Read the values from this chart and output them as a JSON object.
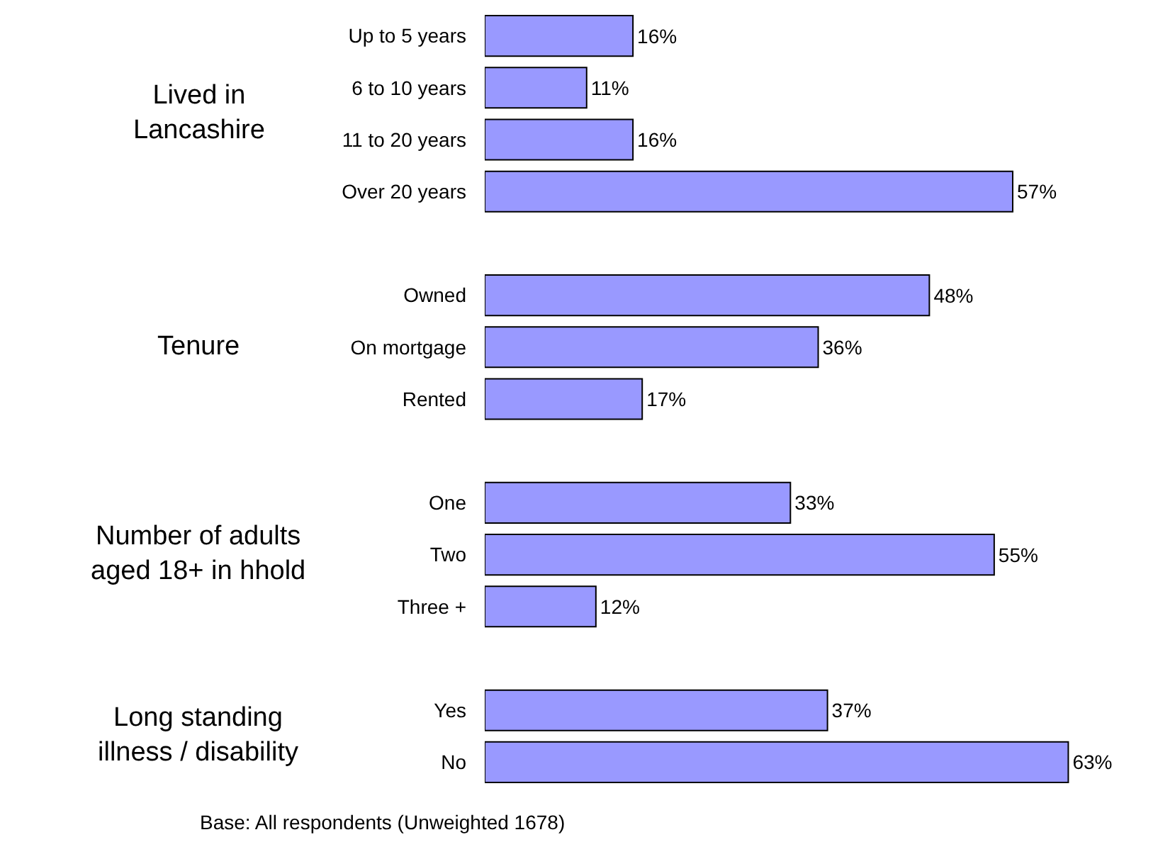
{
  "chart_data": {
    "type": "bar",
    "orientation": "horizontal",
    "color": "#9999ff",
    "value_labels": [
      "16%",
      "11%",
      "16%",
      "57%",
      null,
      "48%",
      "36%",
      "17%",
      null,
      "33%",
      "55%",
      "12%",
      null,
      "37%",
      "63%"
    ],
    "categories": [
      "Up to 5 years",
      "6 to 10 years",
      "11 to 20 years",
      "Over 20 years",
      null,
      "Owned",
      "On mortgage",
      "Rented",
      null,
      "One",
      "Two",
      "Three +",
      null,
      "Yes",
      "No"
    ],
    "values": [
      16,
      11,
      16,
      57,
      null,
      48,
      36,
      17,
      null,
      33,
      55,
      12,
      null,
      37,
      63
    ],
    "annotations": [
      "Lived in\nLancashire",
      "Tenure",
      "Number of adults\naged 18+ in hhold",
      "Long standing\nillness / disability",
      "Base: All respondents (Unweighted 1678)"
    ]
  }
}
